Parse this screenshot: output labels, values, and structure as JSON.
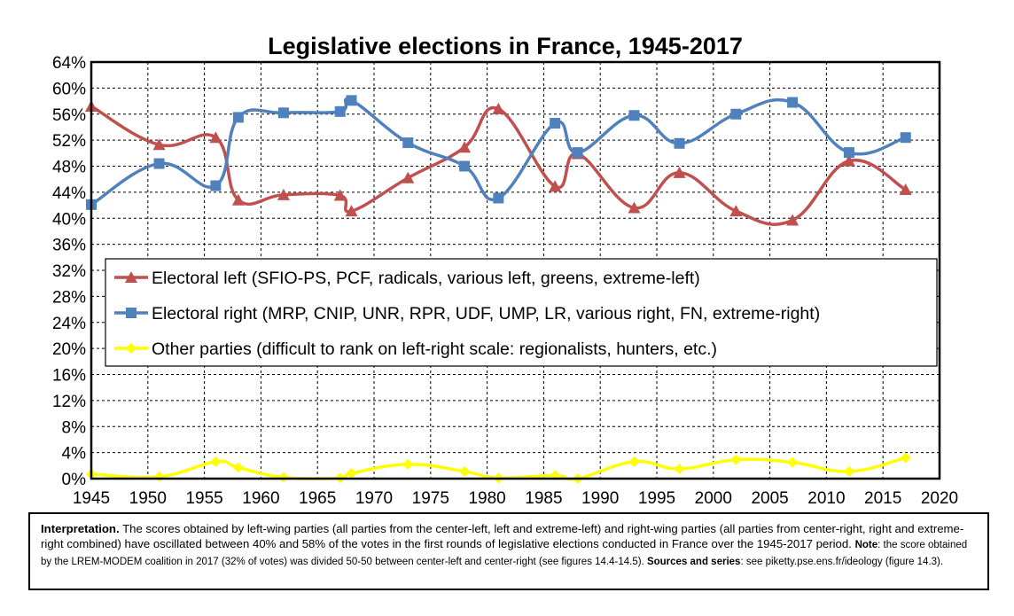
{
  "chart_data": {
    "type": "line",
    "title": "Legislative elections in France, 1945-2017",
    "xlabel": "",
    "ylabel": "",
    "xlim": [
      1945,
      2020
    ],
    "ylim": [
      0,
      64
    ],
    "x_ticks": [
      1945,
      1950,
      1955,
      1960,
      1965,
      1970,
      1975,
      1980,
      1985,
      1990,
      1995,
      2000,
      2005,
      2010,
      2015,
      2020
    ],
    "y_ticks": [
      "0%",
      "4%",
      "8%",
      "12%",
      "16%",
      "20%",
      "24%",
      "28%",
      "32%",
      "36%",
      "40%",
      "44%",
      "48%",
      "52%",
      "56%",
      "60%",
      "64%"
    ],
    "grid": true,
    "legend_position": "center",
    "x": [
      1945,
      1951,
      1956,
      1958,
      1962,
      1967,
      1968,
      1973,
      1978,
      1981,
      1986,
      1988,
      1993,
      1997,
      2002,
      2007,
      2012,
      2017
    ],
    "series": [
      {
        "name": "Electoral left (SFIO-PS, PCF, radicals, various left, greens, extreme-left)",
        "color": "#c0504d",
        "marker": "triangle",
        "values": [
          57.2,
          51.3,
          52.4,
          42.8,
          43.6,
          43.5,
          41.1,
          46.2,
          50.9,
          56.8,
          44.9,
          49.9,
          41.6,
          47.0,
          41.1,
          39.7,
          48.8,
          44.4
        ]
      },
      {
        "name": "Electoral right (MRP, CNIP, UNR, RPR, UDF, UMP, LR, various right, FN, extreme-right)",
        "color": "#4f81bd",
        "marker": "square",
        "values": [
          42.1,
          48.4,
          45.0,
          55.5,
          56.2,
          56.4,
          58.1,
          51.6,
          48.0,
          43.1,
          54.6,
          50.1,
          55.8,
          51.5,
          56.0,
          57.8,
          50.1,
          52.4
        ]
      },
      {
        "name": "Other parties (difficult to rank on left-right scale: regionalists, hunters, etc.)",
        "color": "#ffff00",
        "marker": "diamond",
        "values": [
          0.7,
          0.3,
          2.6,
          1.7,
          0.2,
          0.1,
          0.8,
          2.2,
          1.1,
          0.1,
          0.5,
          0.0,
          2.6,
          1.5,
          2.9,
          2.5,
          1.1,
          3.2
        ]
      }
    ]
  },
  "note": {
    "interpretation_label": "Interpretation.",
    "interpretation_text": " The scores obtained by left-wing parties (all parties from the center-left, left and extreme-left) and right-wing parties (all parties from center-right, right and extreme-right combined) have oscillated between 40% and 58% of the votes in the first rounds of legislative elections conducted in France over the 1945-2017 period. ",
    "note_label": "Note",
    "note_text": ": the score obtained by the LREM-MODEM coalition in 2017 (32% of votes) was divided 50-50 between center-left and center-right (see figures 14.4-14.5). ",
    "sources_label": "Sources and series",
    "sources_text": ": see piketty.pse.ens.fr/ideology (figure 14.3)."
  }
}
